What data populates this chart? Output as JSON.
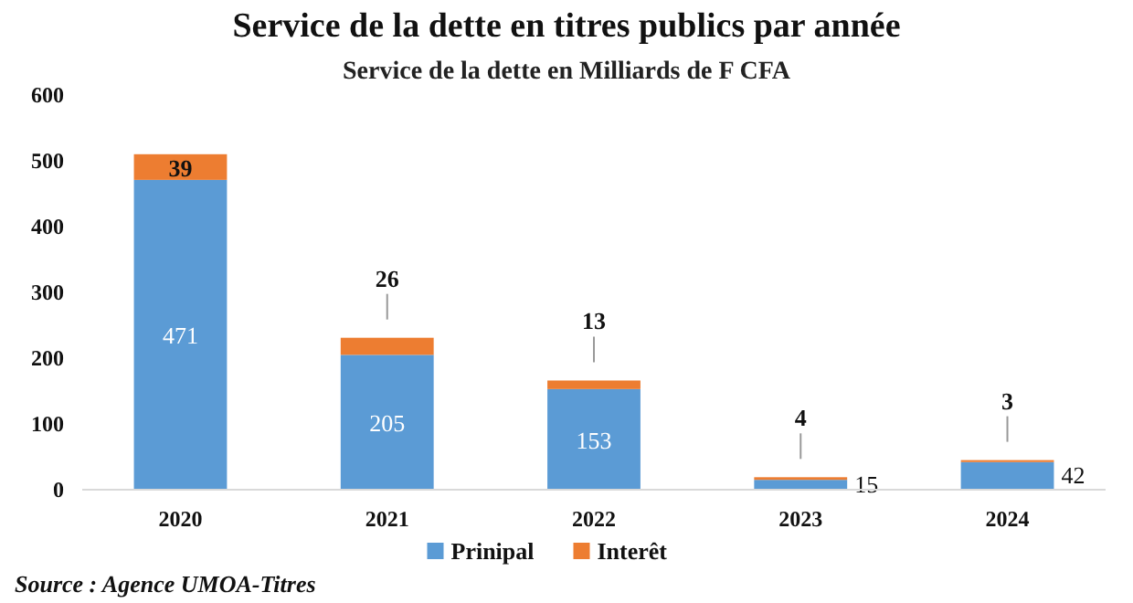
{
  "chart_data": {
    "type": "bar",
    "title": "Service de la dette en titres publics par année",
    "subtitle": "Service de la dette en Milliards de F CFA",
    "categories": [
      "2020",
      "2021",
      "2022",
      "2023",
      "2024"
    ],
    "stacked": true,
    "series": [
      {
        "name": "Prinipal",
        "color": "#5b9bd5",
        "values": [
          471,
          205,
          153,
          15,
          42
        ]
      },
      {
        "name": "Interêt",
        "color": "#ed7d31",
        "values": [
          39,
          26,
          13,
          4,
          3
        ]
      }
    ],
    "ylim": [
      0,
      600
    ],
    "yticks": [
      0,
      100,
      200,
      300,
      400,
      500,
      600
    ],
    "grid": false,
    "legend": "bottom",
    "data_labels": true,
    "annotations": [
      "Source : Agence UMOA-Titres"
    ]
  }
}
